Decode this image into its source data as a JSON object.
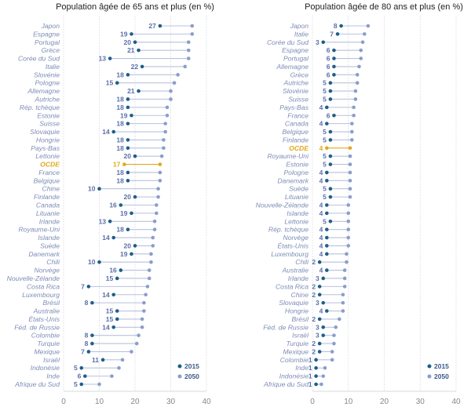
{
  "chart_data": [
    {
      "type": "dumbbell",
      "title": "Population âgée de 65 ans et plus (en %)",
      "xlim": [
        0,
        40
      ],
      "xticks": [
        0,
        10,
        20,
        30,
        40
      ],
      "legend": [
        "2015",
        "2050"
      ],
      "legend_position": "bottom-right",
      "grid": true,
      "highlight": "OCDE",
      "rows": [
        {
          "label": "Japon",
          "v2015": 27,
          "v2050": 36,
          "text": "27"
        },
        {
          "label": "Espagne",
          "v2015": 19,
          "v2050": 36,
          "text": "19"
        },
        {
          "label": "Portugal",
          "v2015": 20,
          "v2050": 35,
          "text": "20"
        },
        {
          "label": "Grèce",
          "v2015": 21,
          "v2050": 35,
          "text": "21"
        },
        {
          "label": "Corée du Sud",
          "v2015": 13,
          "v2050": 35,
          "text": "13"
        },
        {
          "label": "Italie",
          "v2015": 22,
          "v2050": 34,
          "text": "22"
        },
        {
          "label": "Slovénie",
          "v2015": 18,
          "v2050": 32,
          "text": "18"
        },
        {
          "label": "Pologne",
          "v2015": 15,
          "v2050": 31,
          "text": "15"
        },
        {
          "label": "Allemagne",
          "v2015": 21,
          "v2050": 30,
          "text": "21"
        },
        {
          "label": "Autriche",
          "v2015": 18,
          "v2050": 30,
          "text": "18"
        },
        {
          "label": "Rép. tchèque",
          "v2015": 18,
          "v2050": 29,
          "text": "18"
        },
        {
          "label": "Estonie",
          "v2015": 19,
          "v2050": 29,
          "text": "19"
        },
        {
          "label": "Suisse",
          "v2015": 18,
          "v2050": 28.5,
          "text": "18"
        },
        {
          "label": "Slovaquie",
          "v2015": 14,
          "v2050": 28.5,
          "text": "14"
        },
        {
          "label": "Hongrie",
          "v2015": 18,
          "v2050": 28,
          "text": "18"
        },
        {
          "label": "Pays-Bas",
          "v2015": 18,
          "v2050": 28,
          "text": "18"
        },
        {
          "label": "Lettonie",
          "v2015": 20,
          "v2050": 27.5,
          "text": "20"
        },
        {
          "label": "OCDE",
          "v2015": 17,
          "v2050": 27,
          "text": "17"
        },
        {
          "label": "France",
          "v2015": 18,
          "v2050": 27,
          "text": "18"
        },
        {
          "label": "Belgique",
          "v2015": 18,
          "v2050": 27,
          "text": "18"
        },
        {
          "label": "Chine",
          "v2015": 10,
          "v2050": 26.5,
          "text": "10"
        },
        {
          "label": "Finlande",
          "v2015": 20,
          "v2050": 26.5,
          "text": "20"
        },
        {
          "label": "Canada",
          "v2015": 16,
          "v2050": 26,
          "text": "16"
        },
        {
          "label": "Lituanie",
          "v2015": 19,
          "v2050": 26,
          "text": "19"
        },
        {
          "label": "Irlande",
          "v2015": 13,
          "v2050": 25.5,
          "text": "13"
        },
        {
          "label": "Royaume-Uni",
          "v2015": 18,
          "v2050": 25.5,
          "text": "18"
        },
        {
          "label": "Islande",
          "v2015": 14,
          "v2050": 25,
          "text": "14"
        },
        {
          "label": "Suède",
          "v2015": 20,
          "v2050": 25,
          "text": "20"
        },
        {
          "label": "Danemark",
          "v2015": 19,
          "v2050": 24.5,
          "text": "19"
        },
        {
          "label": "Chili",
          "v2015": 10,
          "v2050": 24.5,
          "text": "10"
        },
        {
          "label": "Norvège",
          "v2015": 16,
          "v2050": 24,
          "text": "16"
        },
        {
          "label": "Nouvelle-Zélande",
          "v2015": 15,
          "v2050": 24,
          "text": "15"
        },
        {
          "label": "Costa Rica",
          "v2015": 7,
          "v2050": 23.5,
          "text": "7"
        },
        {
          "label": "Luxembourg",
          "v2015": 14,
          "v2050": 23,
          "text": "14"
        },
        {
          "label": "Brésil",
          "v2015": 8,
          "v2050": 22.5,
          "text": "8"
        },
        {
          "label": "Australie",
          "v2015": 15,
          "v2050": 22.5,
          "text": "15"
        },
        {
          "label": "États-Unis",
          "v2015": 15,
          "v2050": 22,
          "text": "15"
        },
        {
          "label": "Féd. de Russie",
          "v2015": 14,
          "v2050": 22,
          "text": "14"
        },
        {
          "label": "Colombie",
          "v2015": 8,
          "v2050": 21,
          "text": "8"
        },
        {
          "label": "Turquie",
          "v2015": 8,
          "v2050": 20.5,
          "text": "8"
        },
        {
          "label": "Mexique",
          "v2015": 7,
          "v2050": 19,
          "text": "7"
        },
        {
          "label": "Israël",
          "v2015": 11,
          "v2050": 16.5,
          "text": "11"
        },
        {
          "label": "Indonésie",
          "v2015": 5,
          "v2050": 15.5,
          "text": "5"
        },
        {
          "label": "Inde",
          "v2015": 6,
          "v2050": 13.5,
          "text": "6"
        },
        {
          "label": "Afrique du Sud",
          "v2015": 5,
          "v2050": 10,
          "text": "5"
        }
      ]
    },
    {
      "type": "dumbbell",
      "title": "Population âgée de 80 ans et plus (en %)",
      "xlim": [
        0,
        40
      ],
      "xticks": [
        0,
        10,
        20,
        30,
        40
      ],
      "legend": [
        "2015",
        "2050"
      ],
      "legend_position": "bottom-right",
      "grid": true,
      "highlight": "OCDE",
      "rows": [
        {
          "label": "Japon",
          "v2015": 8,
          "v2050": 15.5,
          "text": "8"
        },
        {
          "label": "Italie",
          "v2015": 7,
          "v2050": 14.5,
          "text": "7"
        },
        {
          "label": "Corée du Sud",
          "v2015": 3,
          "v2050": 14,
          "text": "3"
        },
        {
          "label": "Espagne",
          "v2015": 6,
          "v2050": 13.5,
          "text": "6"
        },
        {
          "label": "Portugal",
          "v2015": 6,
          "v2050": 13.5,
          "text": "6"
        },
        {
          "label": "Allemagne",
          "v2015": 6,
          "v2050": 13,
          "text": "6"
        },
        {
          "label": "Grèce",
          "v2015": 6,
          "v2050": 12.5,
          "text": "6"
        },
        {
          "label": "Autriche",
          "v2015": 5,
          "v2050": 12.5,
          "text": "5"
        },
        {
          "label": "Slovénie",
          "v2015": 5,
          "v2050": 12,
          "text": "5"
        },
        {
          "label": "Suisse",
          "v2015": 5,
          "v2050": 12,
          "text": "5"
        },
        {
          "label": "Pays-Bas",
          "v2015": 4,
          "v2050": 11.5,
          "text": "4"
        },
        {
          "label": "France",
          "v2015": 6,
          "v2050": 11.5,
          "text": "6"
        },
        {
          "label": "Canada",
          "v2015": 4,
          "v2050": 11,
          "text": "4"
        },
        {
          "label": "Belgique",
          "v2015": 5,
          "v2050": 11,
          "text": "5"
        },
        {
          "label": "Finlande",
          "v2015": 5,
          "v2050": 11,
          "text": "5"
        },
        {
          "label": "OCDE",
          "v2015": 4,
          "v2050": 10.5,
          "text": "4"
        },
        {
          "label": "Royaume-Uni",
          "v2015": 5,
          "v2050": 10.5,
          "text": "5"
        },
        {
          "label": "Estonie",
          "v2015": 5,
          "v2050": 10.5,
          "text": "5"
        },
        {
          "label": "Pologne",
          "v2015": 4,
          "v2050": 10.5,
          "text": "4"
        },
        {
          "label": "Danemark",
          "v2015": 4,
          "v2050": 10.5,
          "text": "4"
        },
        {
          "label": "Suède",
          "v2015": 5,
          "v2050": 10.5,
          "text": "5"
        },
        {
          "label": "Lituanie",
          "v2015": 5,
          "v2050": 10.5,
          "text": "5"
        },
        {
          "label": "Nouvelle-Zélande",
          "v2015": 4,
          "v2050": 10,
          "text": "4"
        },
        {
          "label": "Islande",
          "v2015": 4,
          "v2050": 10,
          "text": "4"
        },
        {
          "label": "Lettonie",
          "v2015": 5,
          "v2050": 10,
          "text": "5"
        },
        {
          "label": "Rép. tchèque",
          "v2015": 4,
          "v2050": 10,
          "text": "4"
        },
        {
          "label": "Norvège",
          "v2015": 4,
          "v2050": 10,
          "text": "4"
        },
        {
          "label": "États-Unis",
          "v2015": 4,
          "v2050": 10,
          "text": "4"
        },
        {
          "label": "Luxembourg",
          "v2015": 4,
          "v2050": 9.5,
          "text": "4"
        },
        {
          "label": "Chili",
          "v2015": 2,
          "v2050": 9.5,
          "text": "2"
        },
        {
          "label": "Australie",
          "v2015": 4,
          "v2050": 9,
          "text": "4"
        },
        {
          "label": "Irlande",
          "v2015": 3,
          "v2050": 9,
          "text": "3"
        },
        {
          "label": "Costa Rica",
          "v2015": 2,
          "v2050": 9,
          "text": "2"
        },
        {
          "label": "Chine",
          "v2015": 2,
          "v2050": 8.5,
          "text": "2"
        },
        {
          "label": "Slovaquie",
          "v2015": 3,
          "v2050": 8.5,
          "text": "3"
        },
        {
          "label": "Hongrie",
          "v2015": 4,
          "v2050": 8.5,
          "text": "4"
        },
        {
          "label": "Brésil",
          "v2015": 2,
          "v2050": 7.5,
          "text": "2"
        },
        {
          "label": "Féd. de Russie",
          "v2015": 3,
          "v2050": 6.5,
          "text": "3"
        },
        {
          "label": "Israël",
          "v2015": 3,
          "v2050": 6,
          "text": "3"
        },
        {
          "label": "Turquie",
          "v2015": 2,
          "v2050": 6,
          "text": "2"
        },
        {
          "label": "Mexique",
          "v2015": 2,
          "v2050": 5.5,
          "text": "2"
        },
        {
          "label": "Colombie",
          "v2015": 1,
          "v2050": 5.5,
          "text": "1"
        },
        {
          "label": "Inde",
          "v2015": 1,
          "v2050": 3.5,
          "text": "1"
        },
        {
          "label": "Indonésie",
          "v2015": 1,
          "v2050": 3,
          "text": "1"
        },
        {
          "label": "Afrique du Sud",
          "v2015": 1,
          "v2050": 2.5,
          "text": "1"
        }
      ]
    }
  ],
  "colors": {
    "c2015": "#1e5e8a",
    "c2050": "#8a9dcc",
    "line": "#b9c2de",
    "grid": "#d2d6e2",
    "highlight": "#e3a81c"
  }
}
